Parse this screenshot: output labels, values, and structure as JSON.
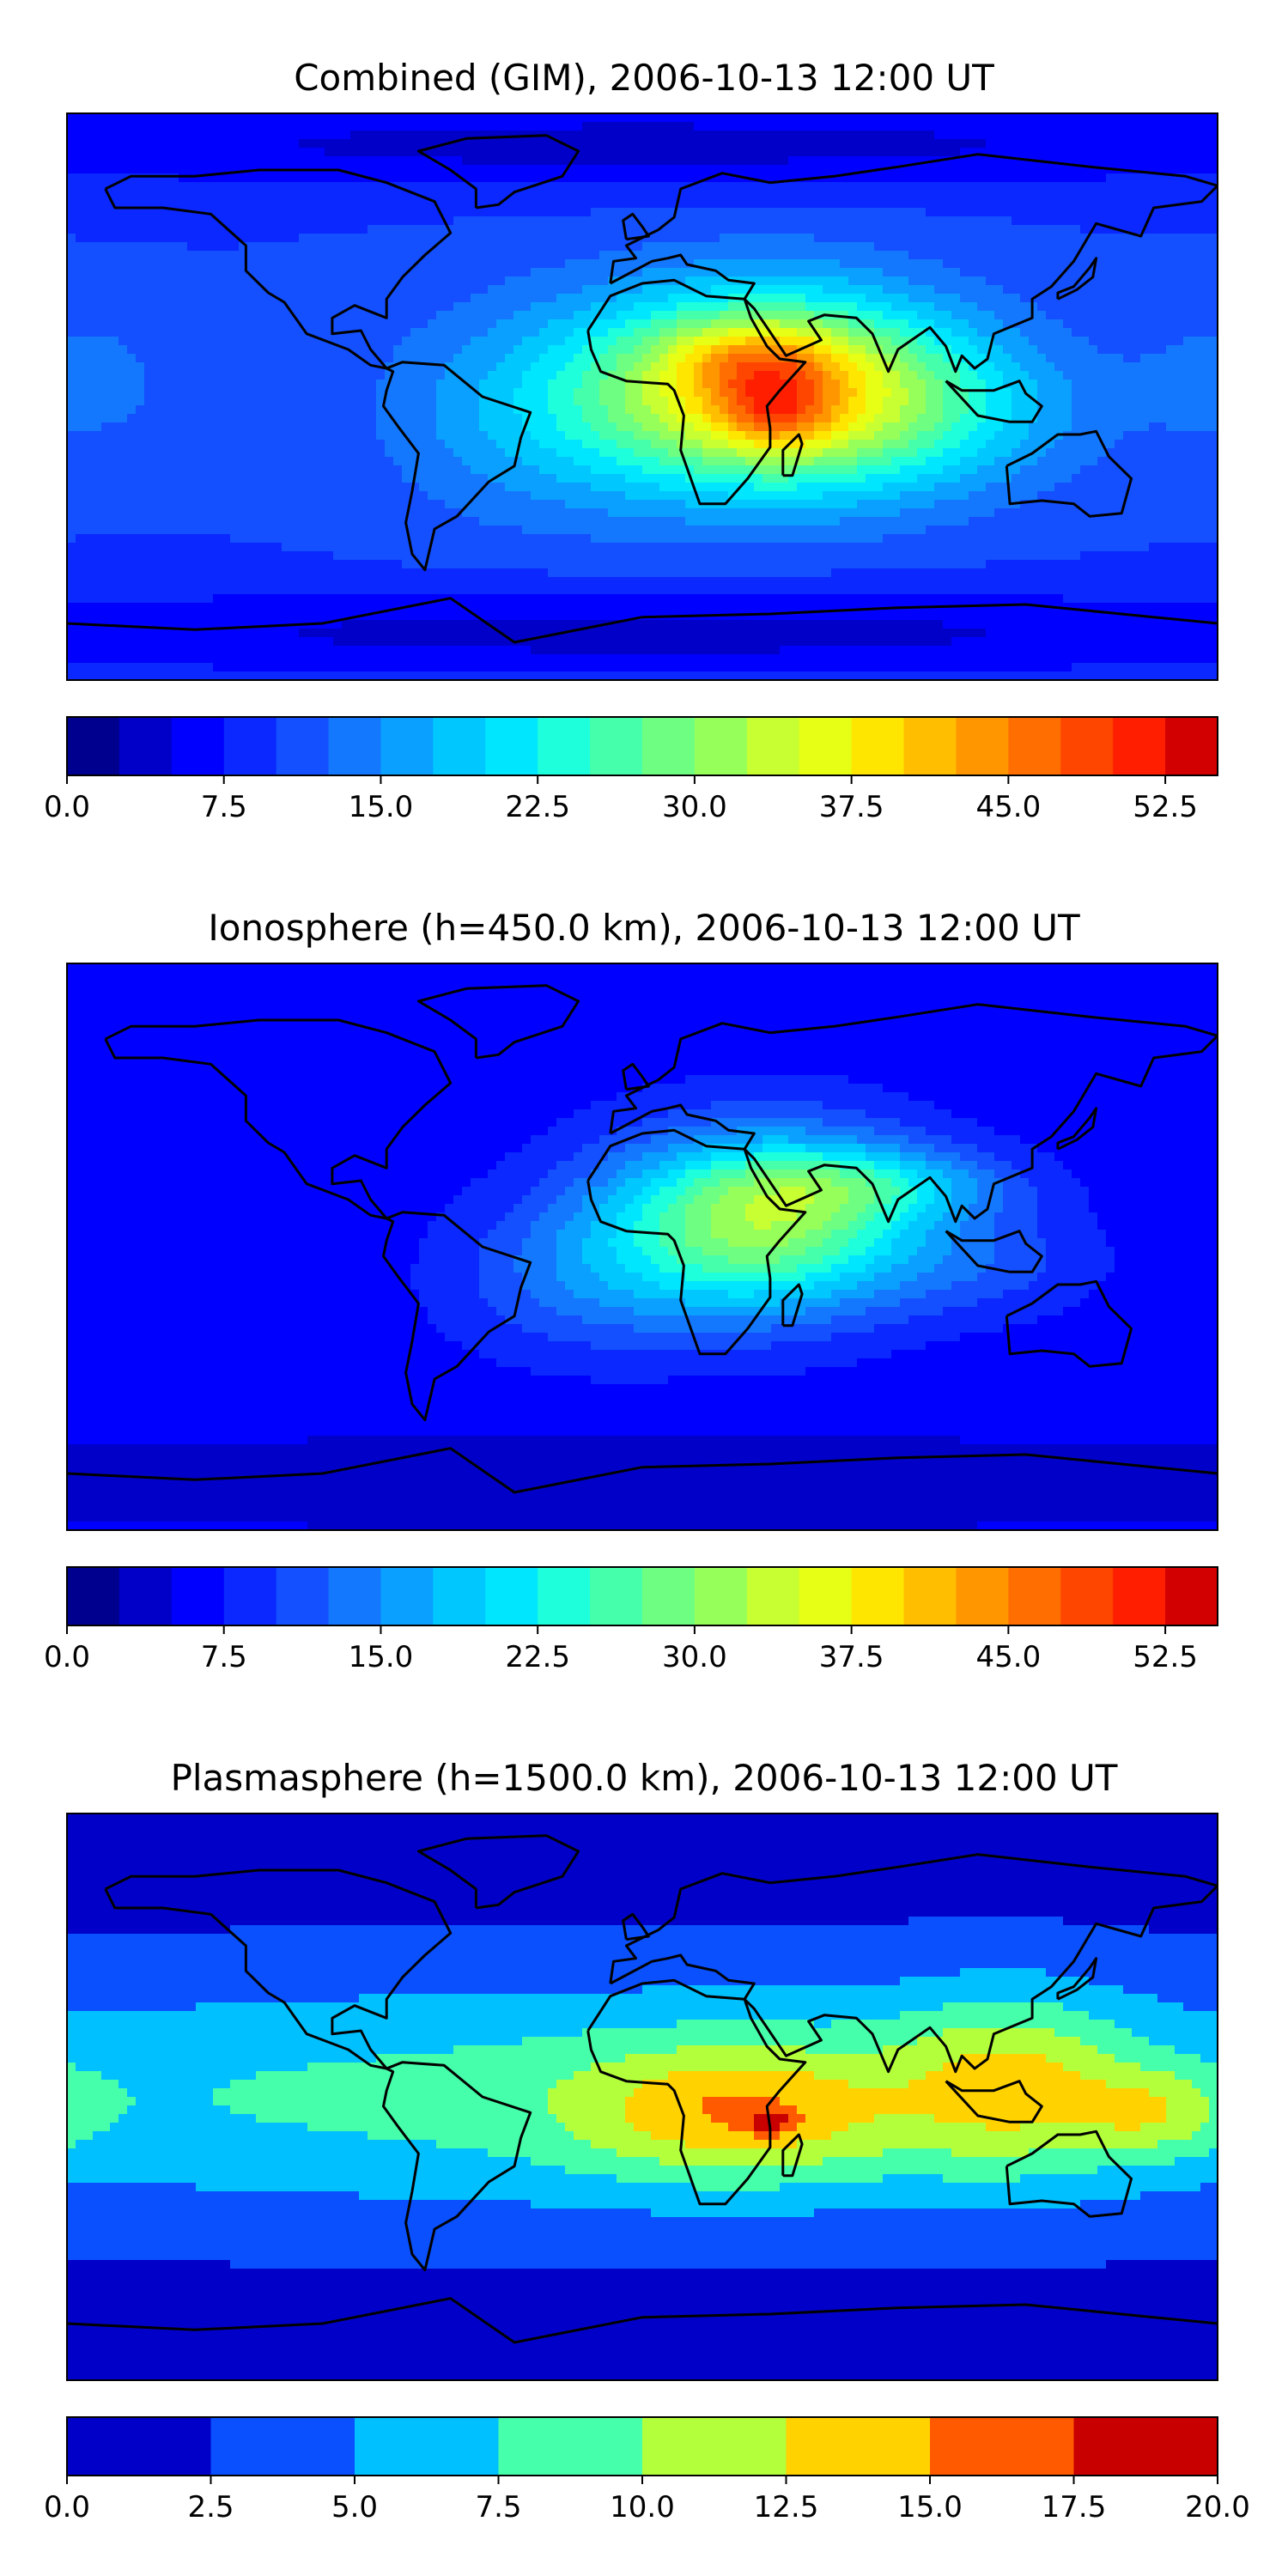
{
  "panels": [
    {
      "title": "Combined (GIM), 2006-10-13 12:00 UT",
      "colorbar": {
        "min": 0,
        "max": 55,
        "step": 2.5,
        "ticks": [
          "0.0",
          "7.5",
          "15.0",
          "22.5",
          "30.0",
          "37.5",
          "45.0",
          "52.5"
        ],
        "tick_values": [
          0,
          7.5,
          15,
          22.5,
          30,
          37.5,
          45,
          52.5
        ]
      },
      "field": {
        "background": 10,
        "blobs": [
          {
            "lon": 40,
            "lat": 2,
            "sx": 40,
            "sy": 22,
            "amp": 30
          },
          {
            "lon": 35,
            "lat": 12,
            "sx": 18,
            "sy": 8,
            "amp": 8
          },
          {
            "lon": 42,
            "lat": -5,
            "sx": 12,
            "sy": 8,
            "amp": 9
          },
          {
            "lon": 95,
            "lat": -5,
            "sx": 35,
            "sy": 18,
            "amp": 6
          },
          {
            "lon": -35,
            "lat": -5,
            "sx": 35,
            "sy": 25,
            "amp": 6
          },
          {
            "lon": -175,
            "lat": 5,
            "sx": 20,
            "sy": 15,
            "amp": 4
          },
          {
            "lon": 0,
            "lat": -75,
            "sx": 180,
            "sy": 10,
            "amp": -6
          },
          {
            "lon": 0,
            "lat": 80,
            "sx": 180,
            "sy": 10,
            "amp": -6
          }
        ]
      }
    },
    {
      "title": "Ionosphere  (h=450.0 km), 2006-10-13 12:00 UT",
      "colorbar": {
        "min": 0,
        "max": 55,
        "step": 2.5,
        "ticks": [
          "0.0",
          "7.5",
          "15.0",
          "22.5",
          "30.0",
          "37.5",
          "45.0",
          "52.5"
        ],
        "tick_values": [
          0,
          7.5,
          15,
          22.5,
          30,
          37.5,
          45,
          52.5
        ]
      },
      "field": {
        "background": 6,
        "blobs": [
          {
            "lon": 38,
            "lat": 8,
            "sx": 35,
            "sy": 20,
            "amp": 25
          },
          {
            "lon": 75,
            "lat": 20,
            "sx": 30,
            "sy": 8,
            "amp": 8
          },
          {
            "lon": -20,
            "lat": -10,
            "sx": 30,
            "sy": 18,
            "amp": 6
          },
          {
            "lon": 110,
            "lat": -5,
            "sx": 25,
            "sy": 12,
            "amp": 4
          },
          {
            "lon": 0,
            "lat": -75,
            "sx": 180,
            "sy": 10,
            "amp": -3
          }
        ]
      }
    },
    {
      "title": "Plasmasphere (h=1500.0 km), 2006-10-13 12:00 UT",
      "colorbar": {
        "min": 0,
        "max": 20,
        "step": 2.5,
        "ticks": [
          "0.0",
          "2.5",
          "5.0",
          "7.5",
          "10.0",
          "12.5",
          "15.0",
          "17.5",
          "20.0"
        ],
        "tick_values": [
          0,
          2.5,
          5,
          7.5,
          10,
          12.5,
          15,
          17.5,
          20
        ]
      },
      "field": {
        "background": 1.5,
        "blobs": [
          {
            "lon": 0,
            "lat": 0,
            "sx": 240,
            "sy": 28,
            "amp": 7
          },
          {
            "lon": 30,
            "lat": -5,
            "sx": 35,
            "sy": 15,
            "amp": 7
          },
          {
            "lon": 115,
            "lat": 5,
            "sx": 25,
            "sy": 20,
            "amp": 6
          },
          {
            "lon": 160,
            "lat": -5,
            "sx": 18,
            "sy": 10,
            "amp": 5
          },
          {
            "lon": 40,
            "lat": -8,
            "sx": 6,
            "sy": 3,
            "amp": 4
          }
        ]
      }
    }
  ],
  "palette_55": [
    "#00008f",
    "#0000c8",
    "#0000ff",
    "#0a28ff",
    "#1450ff",
    "#1478ff",
    "#0aa0ff",
    "#00c8ff",
    "#00e6ff",
    "#1effdc",
    "#46ffaa",
    "#6eff82",
    "#96ff5a",
    "#c8ff32",
    "#e6ff14",
    "#ffe600",
    "#ffbe00",
    "#ff9600",
    "#ff6e00",
    "#ff4600",
    "#ff1e00",
    "#d20000",
    "#960000"
  ],
  "palette_20": [
    "#0000c8",
    "#0a50ff",
    "#00c0ff",
    "#46ffaa",
    "#b4ff3c",
    "#ffd200",
    "#ff5a00",
    "#c80000"
  ],
  "coastline_color": "#000000"
}
